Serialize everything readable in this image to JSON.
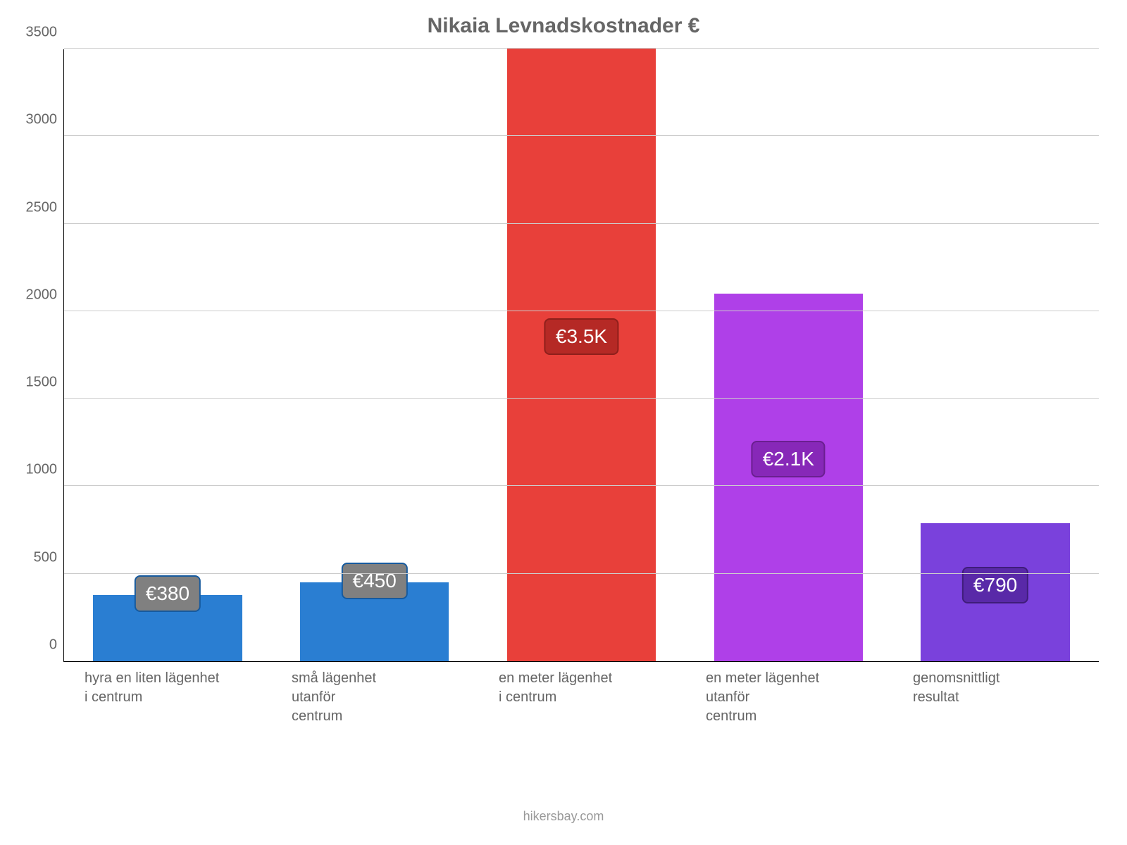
{
  "chart": {
    "type": "bar",
    "title": "Nikaia Levnadskostnader €",
    "title_fontsize": 30,
    "title_color": "#666666",
    "background_color": "#ffffff",
    "axis_color": "#000000",
    "grid_color": "#cccccc",
    "tick_label_color": "#666666",
    "tick_fontsize": 20,
    "xlabel_fontsize": 20,
    "ylim": [
      0,
      3500
    ],
    "ytick_step": 500,
    "yticks": [
      0,
      500,
      1000,
      1500,
      2000,
      2500,
      3000,
      3500
    ],
    "bar_width": 0.72,
    "categories": [
      "hyra en liten lägenhet\ni centrum",
      "små lägenhet\nutanför\ncentrum",
      "en meter lägenhet\ni centrum",
      "en meter lägenhet\nutanför\ncentrum",
      "genomsnittligt\nresultat"
    ],
    "values": [
      380,
      450,
      3500,
      2100,
      790
    ],
    "value_labels": [
      "€380",
      "€450",
      "€3.5K",
      "€2.1K",
      "€790"
    ],
    "bar_colors": [
      "#2a7ed2",
      "#2a7ed2",
      "#e8403a",
      "#af40e8",
      "#7a41dc"
    ],
    "badge_bg_colors": [
      "#808080",
      "#808080",
      "#b52925",
      "#8728b8",
      "#5929a8"
    ],
    "badge_border_colors": [
      "#165a9e",
      "#165a9e",
      "#8e1f1b",
      "#6a1f90",
      "#3f1d7a"
    ],
    "badge_text_color": "#ffffff",
    "badge_fontsize": 28,
    "credit": "hikersbay.com",
    "credit_color": "#999999",
    "credit_fontsize": 18
  }
}
